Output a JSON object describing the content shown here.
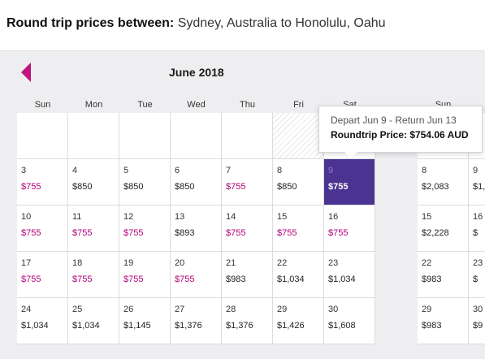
{
  "header": {
    "label": "Round trip prices between:",
    "route": " Sydney, Australia to Honolulu, Oahu"
  },
  "calendar": {
    "month": "June 2018",
    "weekdays": [
      "Sun",
      "Mon",
      "Tue",
      "Wed",
      "Thu",
      "Fri",
      "Sat"
    ],
    "second_month_weekday": "Sun",
    "rows": [
      [
        {
          "d": "",
          "p": "",
          "e": true
        },
        {
          "d": "",
          "p": "",
          "e": true
        },
        {
          "d": "",
          "p": "",
          "e": true
        },
        {
          "d": "",
          "p": "",
          "e": true
        },
        {
          "d": "",
          "p": "",
          "e": true
        },
        {
          "d": "",
          "p": "",
          "e": true,
          "h": true
        },
        {
          "d": "",
          "p": "",
          "e": true
        }
      ],
      [
        {
          "d": "3",
          "p": "$755",
          "low": true
        },
        {
          "d": "4",
          "p": "$850"
        },
        {
          "d": "5",
          "p": "$850"
        },
        {
          "d": "6",
          "p": "$850"
        },
        {
          "d": "7",
          "p": "$755",
          "low": true
        },
        {
          "d": "8",
          "p": "$850"
        },
        {
          "d": "9",
          "p": "$755",
          "sel": true
        }
      ],
      [
        {
          "d": "10",
          "p": "$755",
          "low": true
        },
        {
          "d": "11",
          "p": "$755",
          "low": true
        },
        {
          "d": "12",
          "p": "$755",
          "low": true
        },
        {
          "d": "13",
          "p": "$893"
        },
        {
          "d": "14",
          "p": "$755",
          "low": true
        },
        {
          "d": "15",
          "p": "$755",
          "low": true
        },
        {
          "d": "16",
          "p": "$755",
          "low": true
        }
      ],
      [
        {
          "d": "17",
          "p": "$755",
          "low": true
        },
        {
          "d": "18",
          "p": "$755",
          "low": true
        },
        {
          "d": "19",
          "p": "$755",
          "low": true
        },
        {
          "d": "20",
          "p": "$755",
          "low": true
        },
        {
          "d": "21",
          "p": "$983"
        },
        {
          "d": "22",
          "p": "$1,034"
        },
        {
          "d": "23",
          "p": "$1,034"
        }
      ],
      [
        {
          "d": "24",
          "p": "$1,034"
        },
        {
          "d": "25",
          "p": "$1,034"
        },
        {
          "d": "26",
          "p": "$1,145"
        },
        {
          "d": "27",
          "p": "$1,376"
        },
        {
          "d": "28",
          "p": "$1,376"
        },
        {
          "d": "29",
          "p": "$1,426"
        },
        {
          "d": "30",
          "p": "$1,608"
        }
      ]
    ],
    "second_rows": [
      [
        {
          "d": "",
          "p": "",
          "e": true
        },
        {
          "d": "",
          "p": "",
          "e": true
        }
      ],
      [
        {
          "d": "8",
          "p": "$2,083"
        },
        {
          "d": "9",
          "p": "$1,"
        }
      ],
      [
        {
          "d": "15",
          "p": "$2,228"
        },
        {
          "d": "16",
          "p": "$"
        }
      ],
      [
        {
          "d": "22",
          "p": "$983"
        },
        {
          "d": "23",
          "p": "$"
        }
      ],
      [
        {
          "d": "29",
          "p": "$983"
        },
        {
          "d": "30",
          "p": "$9"
        }
      ]
    ]
  },
  "tooltip": {
    "line1": "Depart Jun 9 - Return Jun 13",
    "line2": "Roundtrip Price: $754.06 AUD"
  }
}
